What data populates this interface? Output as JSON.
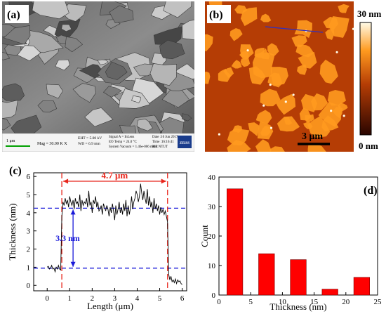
{
  "panels": {
    "a": {
      "letter": "(a)",
      "info": {
        "scale": "1 μm",
        "mag": "Mag =  30.00 K X",
        "eht": "EHT =  5.00 kV",
        "wd": "WD =  6.9 mm",
        "signal": "Signal A = InLens",
        "eotemp": "EO Temp = 24.0 °C",
        "vacuum": "System Vacuum = 1.46e-006 mbar",
        "date": "Date :16 Jun 2017",
        "time": "Time :16:16:41",
        "me": "ME NTUT",
        "logo": "ZEISS"
      }
    },
    "b": {
      "letter": "(b)",
      "colorbar_max": "30 nm",
      "colorbar_min": "0 nm",
      "scalebar": "3 μm",
      "colors": {
        "dark": "#2a0500",
        "mid": "#b53d05",
        "light": "#ff9a1f",
        "max": "#fffbe8"
      }
    },
    "c": {
      "letter": "(c)"
    },
    "d": {
      "letter": "(d)"
    }
  },
  "chart_data": [
    {
      "type": "line",
      "panel": "(c)",
      "xlabel": "Length (μm)",
      "ylabel": "Thickness (nm)",
      "xlim": [
        -0.6,
        6.2
      ],
      "ylim": [
        -0.3,
        6.2
      ],
      "xticks": [
        0,
        1,
        2,
        3,
        4,
        5,
        6
      ],
      "yticks": [
        0,
        1,
        2,
        3,
        4,
        5,
        6
      ],
      "hlines": [
        0.95,
        4.25
      ],
      "vlines": [
        0.65,
        5.35
      ],
      "annotations": [
        {
          "text": "4.7 μm",
          "color": "#e8261c"
        },
        {
          "text": "3.3 nm",
          "color": "#1a1ad9"
        }
      ],
      "series": [
        {
          "color": "#000000",
          "x": [
            0.0,
            0.05,
            0.1,
            0.15,
            0.2,
            0.25,
            0.3,
            0.35,
            0.4,
            0.45,
            0.5,
            0.55,
            0.6,
            0.65,
            0.7,
            0.75,
            0.8,
            0.85,
            0.9,
            0.95,
            1.0,
            1.05,
            1.1,
            1.15,
            1.2,
            1.25,
            1.3,
            1.35,
            1.4,
            1.45,
            1.5,
            1.55,
            1.6,
            1.65,
            1.7,
            1.75,
            1.8,
            1.85,
            1.9,
            1.95,
            2.0,
            2.05,
            2.1,
            2.15,
            2.2,
            2.25,
            2.3,
            2.35,
            2.4,
            2.45,
            2.5,
            2.55,
            2.6,
            2.65,
            2.7,
            2.75,
            2.8,
            2.85,
            2.9,
            2.95,
            3.0,
            3.05,
            3.1,
            3.15,
            3.2,
            3.25,
            3.3,
            3.35,
            3.4,
            3.45,
            3.5,
            3.55,
            3.6,
            3.65,
            3.7,
            3.75,
            3.8,
            3.85,
            3.9,
            3.95,
            4.0,
            4.05,
            4.1,
            4.15,
            4.2,
            4.25,
            4.3,
            4.35,
            4.4,
            4.45,
            4.5,
            4.55,
            4.6,
            4.65,
            4.7,
            4.75,
            4.8,
            4.85,
            4.9,
            4.95,
            5.0,
            5.05,
            5.1,
            5.15,
            5.2,
            5.25,
            5.3,
            5.35,
            5.4,
            5.45,
            5.5,
            5.55,
            5.6,
            5.65,
            5.7,
            5.75,
            5.8,
            5.85,
            5.9,
            5.95,
            6.0
          ],
          "y": [
            1.0,
            1.05,
            0.9,
            0.95,
            1.1,
            0.9,
            0.95,
            0.75,
            1.0,
            0.9,
            1.1,
            0.9,
            0.85,
            3.8,
            4.6,
            4.4,
            4.8,
            4.5,
            4.7,
            4.3,
            4.9,
            4.6,
            4.4,
            4.7,
            4.2,
            4.8,
            4.5,
            4.6,
            4.3,
            5.0,
            4.1,
            4.7,
            4.4,
            4.6,
            4.5,
            4.8,
            4.3,
            5.2,
            4.4,
            4.6,
            4.0,
            4.7,
            4.5,
            4.9,
            4.3,
            4.6,
            4.1,
            4.2,
            4.4,
            3.9,
            4.5,
            4.3,
            4.1,
            4.4,
            4.2,
            3.8,
            4.3,
            4.0,
            4.5,
            4.1,
            3.6,
            4.4,
            3.9,
            4.2,
            4.6,
            4.0,
            4.3,
            3.9,
            4.5,
            4.1,
            4.7,
            3.8,
            4.4,
            3.9,
            4.3,
            4.9,
            4.2,
            4.6,
            4.8,
            5.2,
            5.0,
            4.6,
            4.9,
            5.6,
            5.1,
            4.7,
            5.2,
            4.8,
            4.5,
            5.3,
            4.4,
            4.9,
            4.3,
            4.6,
            4.0,
            4.8,
            4.2,
            4.5,
            4.1,
            4.4,
            3.9,
            4.3,
            4.0,
            4.2,
            3.9,
            4.1,
            3.8,
            3.5,
            0.6,
            0.3,
            0.5,
            0.2,
            0.3,
            0.15,
            0.35,
            0.1,
            0.3,
            0.2,
            0.25,
            0.1,
            0.05
          ]
        }
      ]
    },
    {
      "type": "bar",
      "panel": "(d)",
      "xlabel": "Thickness (nm)",
      "ylabel": "Count",
      "xlim": [
        0,
        25
      ],
      "ylim": [
        0,
        40
      ],
      "xticks": [
        0,
        5,
        10,
        15,
        20,
        25
      ],
      "yticks": [
        0,
        10,
        20,
        30,
        40
      ],
      "bar_centers": [
        2.5,
        7.5,
        12.5,
        17.5,
        22.5
      ],
      "bar_width": 2.5,
      "values": [
        36,
        14,
        12,
        2,
        6
      ],
      "color": "#ff0000"
    }
  ]
}
